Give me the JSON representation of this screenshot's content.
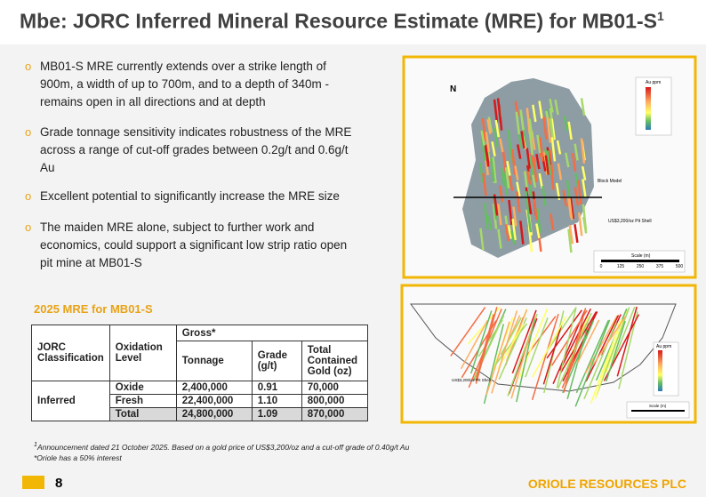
{
  "header": {
    "title": "Mbe: JORC Inferred Mineral Resource Estimate (MRE) for MB01-S",
    "title_sup": "1"
  },
  "bullets": [
    "MB01-S MRE currently extends over a strike length of 900m, a width of up to 700m, and to a depth of 340m - remains open in all directions and at depth",
    "Grade tonnage sensitivity indicates robustness of the MRE across a range of cut-off grades between 0.2g/t and 0.6g/t Au",
    "Excellent potential to significantly increase the MRE size",
    "The maiden MRE alone, subject to further work and economics, could support a significant low strip ratio open pit mine at MB01-S"
  ],
  "table": {
    "title": "2025 MRE for MB01-S",
    "header": {
      "classification": "JORC Classification",
      "oxidation": "Oxidation Level",
      "group": "Gross*",
      "tonnage": "Tonnage",
      "grade": "Grade (g/t)",
      "gold": "Total Contained Gold (oz)"
    },
    "category": "Inferred",
    "rows": [
      [
        "Oxide",
        "2,400,000",
        "0.91",
        "70,000"
      ],
      [
        "Fresh",
        "22,400,000",
        "1.10",
        "800,000"
      ],
      [
        "Total",
        "24,800,000",
        "1.09",
        "870,000"
      ]
    ]
  },
  "footnotes": {
    "sup": "1",
    "note1": "Announcement dated 21 October 2025. Based on a gold price of US$3,200/oz and a cut-off grade of 0.40g/t Au",
    "note2": "*Oriole has a 50% interest"
  },
  "map1": {
    "north": "N",
    "legend": "Au ppm",
    "block": "Block Model",
    "shell": "US$3,200/oz Pit Shell",
    "scale": "Scale (m)",
    "scale_ticks": [
      "0",
      "125",
      "250",
      "375",
      "500"
    ]
  },
  "map2": {
    "legend": "Au ppm",
    "shell": "US$3,200/oz Pit Shell",
    "scale": "Scale (m)"
  },
  "footer": {
    "page": "8",
    "company": "ORIOLE RESOURCES PLC"
  }
}
